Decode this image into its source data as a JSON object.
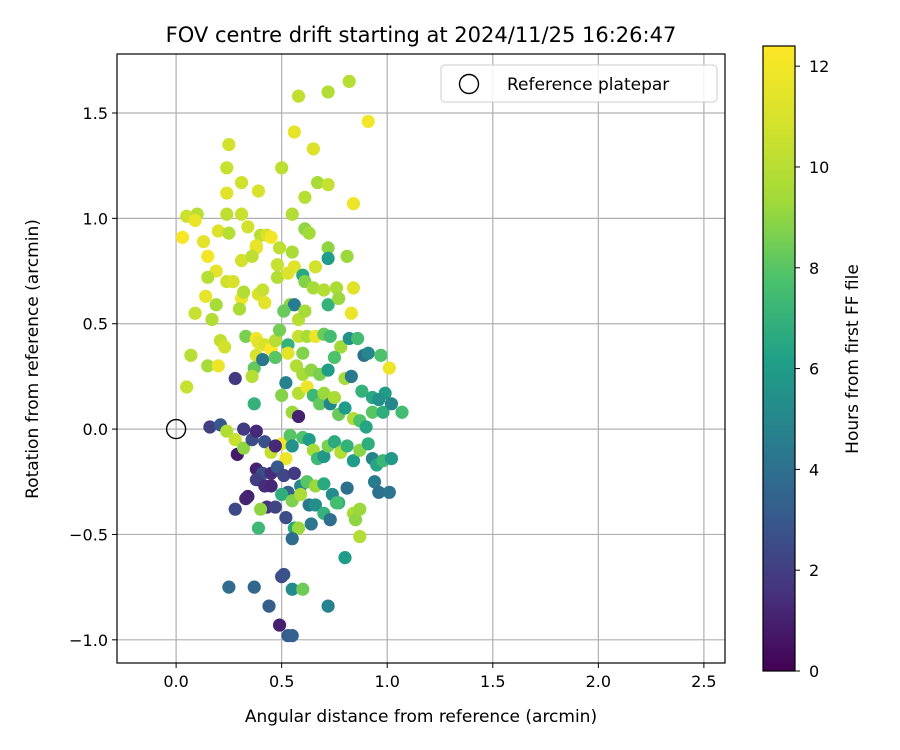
{
  "chart_data": {
    "type": "scatter",
    "title": "FOV centre drift starting at 2024/11/25 16:26:47",
    "xlabel": "Angular distance from reference (arcmin)",
    "ylabel": "Rotation from reference (arcmin)",
    "xlim": [
      -0.28,
      2.6
    ],
    "ylim": [
      -1.11,
      1.78
    ],
    "xticks": [
      0.0,
      0.5,
      1.0,
      1.5,
      2.0,
      2.5
    ],
    "xtick_labels": [
      "0.0",
      "0.5",
      "1.0",
      "1.5",
      "2.0",
      "2.5"
    ],
    "yticks": [
      -1.0,
      -0.5,
      0.0,
      0.5,
      1.0,
      1.5
    ],
    "ytick_labels": [
      "−1.0",
      "−0.5",
      "0.0",
      "0.5",
      "1.0",
      "1.5"
    ],
    "grid": true,
    "legend": {
      "position": "upper-right",
      "entries": [
        {
          "label": "Reference platepar",
          "marker": "open-circle"
        }
      ]
    },
    "reference_point": {
      "x": 0.0,
      "y": 0.0
    },
    "colorbar": {
      "label": "Hours from first FF file",
      "colormap": "viridis",
      "range": [
        0,
        12.4
      ],
      "ticks": [
        0,
        2,
        4,
        6,
        8,
        10,
        12
      ],
      "tick_labels": [
        "0",
        "2",
        "4",
        "6",
        "8",
        "10",
        "12"
      ]
    },
    "series": [
      {
        "color_by": "hours",
        "points": [
          [
            0.82,
            1.65,
            10.0
          ],
          [
            0.58,
            1.58,
            10.3
          ],
          [
            0.72,
            1.6,
            9.8
          ],
          [
            0.91,
            1.46,
            12.0
          ],
          [
            0.56,
            1.41,
            11.5
          ],
          [
            0.25,
            1.35,
            10.8
          ],
          [
            0.65,
            1.33,
            11.2
          ],
          [
            0.24,
            1.24,
            10.5
          ],
          [
            0.5,
            1.24,
            10.2
          ],
          [
            0.39,
            1.13,
            11.0
          ],
          [
            0.31,
            1.17,
            10.7
          ],
          [
            0.67,
            1.17,
            9.5
          ],
          [
            0.72,
            1.16,
            10.4
          ],
          [
            0.24,
            1.12,
            11.3
          ],
          [
            0.61,
            1.1,
            10.0
          ],
          [
            0.84,
            1.07,
            11.8
          ],
          [
            0.05,
            1.01,
            10.6
          ],
          [
            0.1,
            1.02,
            10.0
          ],
          [
            0.09,
            0.99,
            11.7
          ],
          [
            0.24,
            1.02,
            10.2
          ],
          [
            0.31,
            1.02,
            10.5
          ],
          [
            0.55,
            1.02,
            9.8
          ],
          [
            0.61,
            0.95,
            9.0
          ],
          [
            0.2,
            0.94,
            11.2
          ],
          [
            0.25,
            0.93,
            10.0
          ],
          [
            0.34,
            0.96,
            10.8
          ],
          [
            0.03,
            0.91,
            12.2
          ],
          [
            0.13,
            0.89,
            11.4
          ],
          [
            0.4,
            0.92,
            10.0
          ],
          [
            0.43,
            0.92,
            11.0
          ],
          [
            0.38,
            0.86,
            11.3
          ],
          [
            0.45,
            0.91,
            12.0
          ],
          [
            0.49,
            0.86,
            10.2
          ],
          [
            0.55,
            0.84,
            9.6
          ],
          [
            0.63,
            0.93,
            9.4
          ],
          [
            0.72,
            0.86,
            9.0
          ],
          [
            0.81,
            0.82,
            9.2
          ],
          [
            0.15,
            0.82,
            12.0
          ],
          [
            0.31,
            0.8,
            10.8
          ],
          [
            0.38,
            0.87,
            11.6
          ],
          [
            0.36,
            0.82,
            10.2
          ],
          [
            0.48,
            0.78,
            10.5
          ],
          [
            0.56,
            0.77,
            11.3
          ],
          [
            0.6,
            0.73,
            6.5
          ],
          [
            0.66,
            0.77,
            10.8
          ],
          [
            0.72,
            0.81,
            6.0
          ],
          [
            0.19,
            0.75,
            11.5
          ],
          [
            0.15,
            0.72,
            10.0
          ],
          [
            0.24,
            0.7,
            10.7
          ],
          [
            0.27,
            0.7,
            11.0
          ],
          [
            0.48,
            0.72,
            9.8
          ],
          [
            0.53,
            0.74,
            11.2
          ],
          [
            0.61,
            0.7,
            8.8
          ],
          [
            0.65,
            0.67,
            9.5
          ],
          [
            0.7,
            0.66,
            9.9
          ],
          [
            0.76,
            0.67,
            9.6
          ],
          [
            0.84,
            0.67,
            11.3
          ],
          [
            0.14,
            0.63,
            11.6
          ],
          [
            0.39,
            0.64,
            11.0
          ],
          [
            0.31,
            0.62,
            11.8
          ],
          [
            0.42,
            0.6,
            11.4
          ],
          [
            0.41,
            0.66,
            10.5
          ],
          [
            0.32,
            0.65,
            9.8
          ],
          [
            0.54,
            0.59,
            9.0
          ],
          [
            0.56,
            0.59,
            4.5
          ],
          [
            0.19,
            0.59,
            9.5
          ],
          [
            0.09,
            0.55,
            10.5
          ],
          [
            0.3,
            0.57,
            9.6
          ],
          [
            0.51,
            0.56,
            8.3
          ],
          [
            0.58,
            0.52,
            10.0
          ],
          [
            0.61,
            0.56,
            9.5
          ],
          [
            0.72,
            0.59,
            7.0
          ],
          [
            0.77,
            0.62,
            9.2
          ],
          [
            0.83,
            0.55,
            11.7
          ],
          [
            0.17,
            0.52,
            9.8
          ],
          [
            0.21,
            0.42,
            10.3
          ],
          [
            0.23,
            0.39,
            10.8
          ],
          [
            0.33,
            0.44,
            8.6
          ],
          [
            0.38,
            0.43,
            12.0
          ],
          [
            0.39,
            0.41,
            11.4
          ],
          [
            0.42,
            0.4,
            11.0
          ],
          [
            0.45,
            0.38,
            12.4
          ],
          [
            0.47,
            0.42,
            10.0
          ],
          [
            0.49,
            0.47,
            8.5
          ],
          [
            0.53,
            0.4,
            7.0
          ],
          [
            0.58,
            0.44,
            10.5
          ],
          [
            0.6,
            0.36,
            8.8
          ],
          [
            0.62,
            0.44,
            9.6
          ],
          [
            0.66,
            0.44,
            11.7
          ],
          [
            0.7,
            0.45,
            8.3
          ],
          [
            0.73,
            0.44,
            7.5
          ],
          [
            0.78,
            0.39,
            9.3
          ],
          [
            0.82,
            0.43,
            5.5
          ],
          [
            0.86,
            0.43,
            7.5
          ],
          [
            0.89,
            0.35,
            4.0
          ],
          [
            0.91,
            0.36,
            5.0
          ],
          [
            0.97,
            0.35,
            7.8
          ],
          [
            0.07,
            0.35,
            10.0
          ],
          [
            0.15,
            0.3,
            9.5
          ],
          [
            0.2,
            0.3,
            11.8
          ],
          [
            0.38,
            0.35,
            11.0
          ],
          [
            0.37,
            0.29,
            8.2
          ],
          [
            0.41,
            0.33,
            4.3
          ],
          [
            0.47,
            0.34,
            8.0
          ],
          [
            0.53,
            0.36,
            11.4
          ],
          [
            0.57,
            0.3,
            9.8
          ],
          [
            0.6,
            0.26,
            9.5
          ],
          [
            0.64,
            0.28,
            9.0
          ],
          [
            0.68,
            0.26,
            8.6
          ],
          [
            0.72,
            0.28,
            6.0
          ],
          [
            0.75,
            0.34,
            7.8
          ],
          [
            0.8,
            0.24,
            9.5
          ],
          [
            0.83,
            0.25,
            4.4
          ],
          [
            0.88,
            0.18,
            7.0
          ],
          [
            0.93,
            0.15,
            6.5
          ],
          [
            0.99,
            0.17,
            6.0
          ],
          [
            1.01,
            0.29,
            11.8
          ],
          [
            0.05,
            0.2,
            10.5
          ],
          [
            0.28,
            0.24,
            1.8
          ],
          [
            0.36,
            0.25,
            10.0
          ],
          [
            0.37,
            0.12,
            7.0
          ],
          [
            0.5,
            0.16,
            8.8
          ],
          [
            0.52,
            0.22,
            4.8
          ],
          [
            0.55,
            0.08,
            9.2
          ],
          [
            0.58,
            0.17,
            10.0
          ],
          [
            0.62,
            0.2,
            11.8
          ],
          [
            0.65,
            0.16,
            7.3
          ],
          [
            0.68,
            0.12,
            8.2
          ],
          [
            0.7,
            0.17,
            9.2
          ],
          [
            0.73,
            0.12,
            5.0
          ],
          [
            0.75,
            0.15,
            9.6
          ],
          [
            0.77,
            0.07,
            8.3
          ],
          [
            0.8,
            0.1,
            6.0
          ],
          [
            0.84,
            0.05,
            9.8
          ],
          [
            0.87,
            0.04,
            7.8
          ],
          [
            0.9,
            0.01,
            6.4
          ],
          [
            0.93,
            0.08,
            8.0
          ],
          [
            0.96,
            0.14,
            5.5
          ],
          [
            0.98,
            0.08,
            6.8
          ],
          [
            1.02,
            0.12,
            5.0
          ],
          [
            1.07,
            0.08,
            7.5
          ],
          [
            0.16,
            0.01,
            2.0
          ],
          [
            0.21,
            0.02,
            3.0
          ],
          [
            0.24,
            -0.01,
            9.8
          ],
          [
            0.28,
            -0.05,
            10.5
          ],
          [
            0.29,
            -0.12,
            0.8
          ],
          [
            0.32,
            -0.09,
            9.0
          ],
          [
            0.36,
            -0.05,
            2.5
          ],
          [
            0.38,
            -0.01,
            1.3
          ],
          [
            0.42,
            -0.06,
            2.7
          ],
          [
            0.45,
            -0.11,
            10.3
          ],
          [
            0.5,
            -0.07,
            11.8
          ],
          [
            0.52,
            -0.14,
            11.8
          ],
          [
            0.54,
            -0.03,
            8.0
          ],
          [
            0.55,
            -0.08,
            5.5
          ],
          [
            0.58,
            0.06,
            1.0
          ],
          [
            0.6,
            -0.04,
            7.8
          ],
          [
            0.63,
            -0.05,
            6.0
          ],
          [
            0.65,
            -0.1,
            9.5
          ],
          [
            0.67,
            -0.14,
            7.3
          ],
          [
            0.7,
            -0.13,
            5.8
          ],
          [
            0.72,
            -0.08,
            8.6
          ],
          [
            0.75,
            -0.06,
            6.7
          ],
          [
            0.78,
            -0.11,
            9.8
          ],
          [
            0.81,
            -0.08,
            7.0
          ],
          [
            0.84,
            -0.15,
            6.0
          ],
          [
            0.87,
            -0.1,
            8.9
          ],
          [
            0.91,
            -0.07,
            6.8
          ],
          [
            0.93,
            -0.14,
            4.8
          ],
          [
            0.95,
            -0.17,
            6.4
          ],
          [
            0.98,
            -0.15,
            7.2
          ],
          [
            1.02,
            -0.14,
            5.8
          ],
          [
            0.38,
            -0.19,
            1.0
          ],
          [
            0.41,
            -0.21,
            2.6
          ],
          [
            0.45,
            -0.21,
            1.4
          ],
          [
            0.48,
            -0.18,
            3.0
          ],
          [
            0.51,
            -0.22,
            2.3
          ],
          [
            0.53,
            -0.3,
            3.4
          ],
          [
            0.56,
            -0.21,
            1.9
          ],
          [
            0.59,
            -0.27,
            5.0
          ],
          [
            0.62,
            -0.25,
            8.0
          ],
          [
            0.66,
            -0.27,
            9.2
          ],
          [
            0.7,
            -0.26,
            6.6
          ],
          [
            0.74,
            -0.31,
            5.3
          ],
          [
            0.77,
            -0.35,
            6.8
          ],
          [
            0.81,
            -0.28,
            4.0
          ],
          [
            0.84,
            -0.4,
            9.6
          ],
          [
            0.94,
            -0.25,
            4.5
          ],
          [
            0.96,
            -0.3,
            4.0
          ],
          [
            1.01,
            -0.3,
            4.2
          ],
          [
            0.38,
            -0.24,
            2.0
          ],
          [
            0.42,
            -0.27,
            1.4
          ],
          [
            0.45,
            -0.27,
            1.2
          ],
          [
            0.34,
            -0.32,
            1.0
          ],
          [
            0.43,
            -0.37,
            1.5
          ],
          [
            0.47,
            -0.37,
            2.2
          ],
          [
            0.5,
            -0.31,
            6.8
          ],
          [
            0.55,
            -0.34,
            8.7
          ],
          [
            0.59,
            -0.31,
            9.6
          ],
          [
            0.63,
            -0.36,
            4.4
          ],
          [
            0.66,
            -0.36,
            5.4
          ],
          [
            0.7,
            -0.4,
            7.0
          ],
          [
            0.73,
            -0.43,
            4.0
          ],
          [
            0.76,
            -0.35,
            7.6
          ],
          [
            0.85,
            -0.43,
            9.0
          ],
          [
            0.87,
            -0.38,
            9.2
          ],
          [
            0.28,
            -0.38,
            2.4
          ],
          [
            0.4,
            -0.38,
            9.0
          ],
          [
            0.52,
            -0.42,
            2.6
          ],
          [
            0.56,
            -0.47,
            6.6
          ],
          [
            0.58,
            -0.47,
            9.2
          ],
          [
            0.64,
            -0.45,
            4.3
          ],
          [
            0.39,
            -0.47,
            7.3
          ],
          [
            0.55,
            -0.52,
            3.8
          ],
          [
            0.87,
            -0.51,
            9.8
          ],
          [
            0.8,
            -0.61,
            6.0
          ],
          [
            0.25,
            -0.75,
            3.8
          ],
          [
            0.37,
            -0.75,
            3.6
          ],
          [
            0.5,
            -0.7,
            2.5
          ],
          [
            0.51,
            -0.69,
            2.7
          ],
          [
            0.55,
            -0.76,
            5.2
          ],
          [
            0.6,
            -0.76,
            8.4
          ],
          [
            0.44,
            -0.84,
            3.2
          ],
          [
            0.72,
            -0.84,
            4.8
          ],
          [
            0.49,
            -0.93,
            1.0
          ],
          [
            0.53,
            -0.98,
            3.1
          ],
          [
            0.55,
            -0.98,
            3.3
          ],
          [
            0.33,
            -0.33,
            1.1
          ],
          [
            0.47,
            -0.08,
            1.3
          ],
          [
            0.32,
            0.0,
            1.9
          ]
        ]
      }
    ]
  }
}
